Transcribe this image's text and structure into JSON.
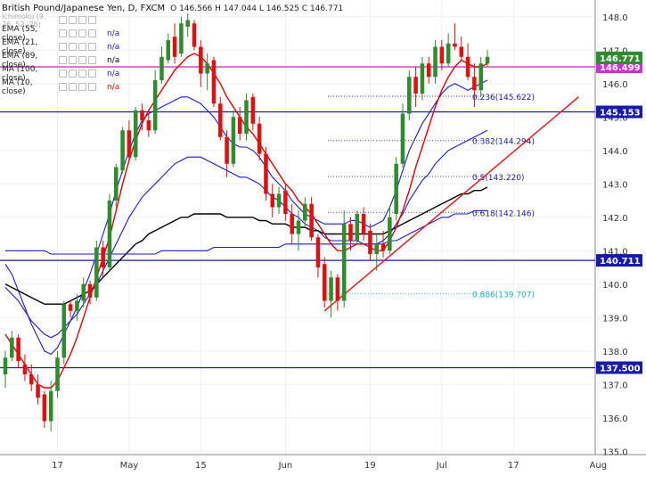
{
  "header": {
    "title": "British Pound/Japanese Yen, D, FXCM",
    "ohlc": "O 146.566  H 147.044  L 146.525  C 146.771",
    "indicators": [
      {
        "label": "Ichimoku (9, 26, 52, 26)",
        "value": "",
        "color": "#999999"
      },
      {
        "label": "EMA (55, close)",
        "value": "n/a",
        "color": "#1a1acc"
      },
      {
        "label": "EMA (21, close)",
        "value": "n/a",
        "color": "#1a1acc"
      },
      {
        "label": "EMA (89, close)",
        "value": "n/a",
        "color": "#000000"
      },
      {
        "label": "MA (100, close)",
        "value": "n/a",
        "color": "#1a1acc"
      },
      {
        "label": "MA (10, close)",
        "value": "n/a",
        "color": "#e00000"
      }
    ]
  },
  "chart_data": {
    "type": "candlestick",
    "symbol": "GBP/JPY",
    "timeframe": "D",
    "ylim": [
      134.9,
      148.5
    ],
    "y_ticks": [
      135.0,
      136.0,
      137.0,
      138.0,
      139.0,
      140.0,
      141.0,
      142.0,
      143.0,
      144.0,
      145.0,
      146.0,
      147.0,
      148.0
    ],
    "x_ticks": [
      "17",
      "May",
      "15",
      "Jun",
      "19",
      "Jul",
      "17",
      "Aug"
    ],
    "x_tick_index": [
      8,
      19,
      30,
      43,
      56,
      67,
      78,
      91
    ],
    "candles": [
      [
        137.3,
        138.0,
        136.9,
        137.8
      ],
      [
        137.8,
        138.6,
        137.7,
        138.4
      ],
      [
        138.4,
        138.5,
        137.5,
        137.7
      ],
      [
        137.6,
        137.9,
        137.1,
        137.3
      ],
      [
        137.3,
        137.6,
        136.8,
        137.0
      ],
      [
        137.0,
        137.3,
        136.4,
        136.6
      ],
      [
        136.7,
        136.8,
        135.7,
        135.9
      ],
      [
        135.9,
        137.1,
        135.6,
        136.8
      ],
      [
        136.8,
        138.0,
        136.6,
        137.8
      ],
      [
        137.8,
        139.5,
        137.6,
        139.4
      ],
      [
        139.4,
        139.5,
        139.0,
        139.2
      ],
      [
        139.2,
        139.7,
        138.9,
        139.5
      ],
      [
        139.5,
        140.2,
        139.3,
        140.0
      ],
      [
        140.0,
        140.1,
        139.4,
        139.6
      ],
      [
        139.6,
        141.3,
        139.5,
        141.1
      ],
      [
        141.1,
        141.3,
        140.2,
        140.5
      ],
      [
        140.5,
        142.7,
        140.4,
        142.5
      ],
      [
        142.5,
        143.6,
        142.3,
        143.5
      ],
      [
        143.4,
        144.7,
        143.3,
        144.6
      ],
      [
        144.6,
        144.9,
        143.7,
        143.8
      ],
      [
        143.8,
        145.3,
        143.7,
        145.2
      ],
      [
        145.2,
        145.4,
        144.6,
        144.9
      ],
      [
        144.9,
        145.1,
        144.4,
        144.6
      ],
      [
        144.6,
        146.4,
        144.5,
        146.1
      ],
      [
        146.1,
        147.1,
        146.0,
        146.8
      ],
      [
        146.7,
        147.5,
        146.6,
        147.3
      ],
      [
        147.4,
        147.8,
        146.6,
        146.8
      ],
      [
        146.9,
        148.0,
        146.8,
        147.8
      ],
      [
        147.7,
        148.1,
        147.4,
        147.9
      ],
      [
        147.8,
        147.9,
        147.0,
        147.1
      ],
      [
        147.1,
        147.3,
        145.9,
        146.3
      ],
      [
        146.3,
        146.9,
        145.8,
        146.6
      ],
      [
        146.7,
        146.8,
        145.3,
        145.4
      ],
      [
        145.4,
        145.6,
        144.3,
        144.4
      ],
      [
        144.4,
        144.6,
        143.2,
        143.6
      ],
      [
        143.6,
        145.2,
        143.5,
        145.0
      ],
      [
        145.0,
        145.3,
        144.3,
        144.5
      ],
      [
        144.5,
        145.7,
        144.3,
        145.5
      ],
      [
        145.6,
        145.7,
        144.6,
        144.8
      ],
      [
        144.8,
        145.0,
        143.7,
        143.9
      ],
      [
        143.9,
        144.1,
        142.5,
        142.7
      ],
      [
        142.7,
        143.0,
        142.0,
        142.3
      ],
      [
        142.3,
        142.9,
        142.1,
        142.7
      ],
      [
        142.8,
        143.0,
        141.9,
        142.1
      ],
      [
        142.1,
        142.4,
        141.2,
        141.5
      ],
      [
        141.5,
        142.2,
        141.0,
        141.9
      ],
      [
        141.9,
        142.6,
        141.7,
        142.4
      ],
      [
        142.4,
        142.6,
        141.3,
        141.4
      ],
      [
        141.4,
        141.5,
        140.2,
        140.5
      ],
      [
        140.6,
        140.8,
        139.3,
        139.5
      ],
      [
        139.5,
        140.4,
        139.0,
        140.2
      ],
      [
        140.2,
        140.3,
        139.2,
        139.5
      ],
      [
        139.5,
        142.2,
        139.3,
        141.8
      ],
      [
        141.8,
        142.0,
        141.0,
        141.3
      ],
      [
        141.3,
        142.2,
        141.2,
        142.1
      ],
      [
        142.1,
        142.3,
        141.3,
        141.5
      ],
      [
        141.6,
        141.8,
        140.7,
        140.9
      ],
      [
        140.9,
        141.5,
        140.4,
        141.2
      ],
      [
        141.2,
        141.6,
        140.8,
        141.0
      ],
      [
        141.0,
        142.3,
        140.9,
        142.0
      ],
      [
        142.1,
        143.8,
        141.9,
        143.6
      ],
      [
        143.6,
        145.4,
        143.5,
        145.1
      ],
      [
        145.1,
        146.4,
        144.9,
        146.2
      ],
      [
        146.2,
        146.5,
        145.3,
        145.7
      ],
      [
        145.7,
        146.8,
        145.5,
        146.6
      ],
      [
        146.6,
        146.8,
        146.0,
        146.2
      ],
      [
        146.2,
        147.3,
        146.0,
        147.1
      ],
      [
        147.1,
        147.3,
        146.4,
        146.6
      ],
      [
        146.6,
        147.5,
        146.5,
        147.2
      ],
      [
        147.2,
        147.8,
        147.0,
        147.1
      ],
      [
        147.1,
        147.4,
        146.7,
        146.8
      ],
      [
        146.8,
        147.2,
        146.1,
        146.2
      ],
      [
        146.2,
        146.6,
        145.3,
        145.8
      ],
      [
        145.8,
        146.8,
        145.6,
        146.6
      ],
      [
        146.6,
        147.0,
        146.5,
        146.8
      ]
    ],
    "horizontal_levels": [
      {
        "value": 146.499,
        "label": "146.499",
        "color": "#cc33cc"
      },
      {
        "value": 145.153,
        "label": "145.153",
        "color": "#1a1aaa"
      },
      {
        "value": 140.711,
        "label": "140.711",
        "color": "#1a1aaa"
      },
      {
        "value": 137.5,
        "label": "137.500",
        "color": "#1a1aaa"
      }
    ],
    "last_price": {
      "value": 146.771,
      "label": "146.771"
    },
    "fib_levels": [
      {
        "value": 145.622,
        "label": "0.236(145.622)",
        "color": "#1a1aaa"
      },
      {
        "value": 144.294,
        "label": "0.382(144.294)",
        "color": "#1a1aaa"
      },
      {
        "value": 143.22,
        "label": "0.5(143.220)",
        "color": "#1a1aaa"
      },
      {
        "value": 142.146,
        "label": "0.618(142.146)",
        "color": "#1a1aaa"
      },
      {
        "value": 139.707,
        "label": "0.886(139.707)",
        "color": "#22aacc"
      }
    ],
    "trendline": {
      "from": [
        49,
        139.2
      ],
      "to": [
        88,
        145.6
      ],
      "color": "#e02020"
    },
    "series": [
      {
        "name": "EMA (55, close)",
        "color": "#1a1acc",
        "values": [
          140.6,
          140.3,
          139.8,
          139.3,
          138.8,
          138.4,
          138.0,
          137.9,
          138.1,
          138.5,
          138.9,
          139.3,
          139.8,
          140.3,
          140.9,
          141.5,
          142.1,
          142.8,
          143.4,
          144.0,
          144.5,
          144.9,
          145.1,
          145.2,
          145.3,
          145.4,
          145.5,
          145.6,
          145.6,
          145.5,
          145.4,
          145.2,
          145.0,
          144.7,
          144.4,
          144.2,
          144.1,
          144.1,
          144.0,
          143.8,
          143.5,
          143.2,
          143.0,
          142.8,
          142.5,
          142.3,
          142.1,
          142.0,
          141.9,
          141.8,
          141.8,
          141.8,
          141.8,
          141.9,
          141.9,
          141.8,
          141.7,
          141.8,
          141.9,
          142.3,
          142.8,
          143.4,
          144.0,
          144.4,
          144.8,
          145.1,
          145.4,
          145.7,
          145.9,
          146.0,
          145.9,
          145.8,
          145.9,
          146.0,
          146.1
        ]
      },
      {
        "name": "EMA (21, close)",
        "color": "#1a1acc",
        "values": [
          139.9,
          139.7,
          139.5,
          139.2,
          138.9,
          138.7,
          138.5,
          138.4,
          138.5,
          138.7,
          138.9,
          139.1,
          139.4,
          139.7,
          140.0,
          140.4,
          140.8,
          141.2,
          141.6,
          142.0,
          142.3,
          142.6,
          142.8,
          143.0,
          143.2,
          143.4,
          143.6,
          143.7,
          143.8,
          143.8,
          143.8,
          143.7,
          143.6,
          143.5,
          143.4,
          143.3,
          143.2,
          143.2,
          143.1,
          143.0,
          142.8,
          142.6,
          142.5,
          142.3,
          142.1,
          142.0,
          141.8,
          141.7,
          141.6,
          141.4,
          141.3,
          141.3,
          141.3,
          141.3,
          141.3,
          141.2,
          141.2,
          141.2,
          141.3,
          141.5,
          141.8,
          142.1,
          142.5,
          142.8,
          143.1,
          143.3,
          143.6,
          143.8,
          144.0,
          144.1,
          144.2,
          144.3,
          144.4,
          144.5,
          144.6
        ]
      },
      {
        "name": "EMA (89, close)",
        "color": "#000000",
        "values": [
          140.0,
          139.9,
          139.8,
          139.7,
          139.6,
          139.5,
          139.4,
          139.4,
          139.4,
          139.4,
          139.5,
          139.6,
          139.7,
          139.8,
          140.0,
          140.2,
          140.4,
          140.6,
          140.8,
          141.0,
          141.2,
          141.3,
          141.5,
          141.6,
          141.7,
          141.8,
          141.9,
          142.0,
          142.0,
          142.1,
          142.1,
          142.1,
          142.1,
          142.1,
          142.0,
          142.0,
          142.0,
          142.0,
          142.0,
          141.9,
          141.9,
          141.8,
          141.8,
          141.8,
          141.7,
          141.7,
          141.7,
          141.6,
          141.6,
          141.5,
          141.5,
          141.5,
          141.5,
          141.5,
          141.5,
          141.5,
          141.5,
          141.5,
          141.5,
          141.6,
          141.7,
          141.8,
          141.9,
          142.0,
          142.1,
          142.2,
          142.3,
          142.4,
          142.5,
          142.6,
          142.7,
          142.7,
          142.8,
          142.8,
          142.9
        ]
      },
      {
        "name": "MA (100, close)",
        "color": "#1a1acc",
        "values": [
          141.0,
          141.0,
          141.0,
          141.0,
          141.0,
          141.0,
          141.0,
          140.9,
          140.9,
          140.9,
          140.9,
          140.9,
          140.9,
          140.9,
          140.9,
          140.9,
          140.9,
          140.9,
          140.9,
          140.9,
          140.9,
          140.9,
          140.9,
          140.9,
          141.0,
          141.0,
          141.0,
          141.0,
          141.0,
          141.0,
          141.0,
          141.0,
          141.1,
          141.1,
          141.1,
          141.1,
          141.1,
          141.1,
          141.1,
          141.1,
          141.1,
          141.1,
          141.1,
          141.2,
          141.2,
          141.2,
          141.2,
          141.2,
          141.2,
          141.2,
          141.2,
          141.2,
          141.2,
          141.2,
          141.2,
          141.2,
          141.2,
          141.2,
          141.2,
          141.3,
          141.3,
          141.4,
          141.5,
          141.6,
          141.7,
          141.8,
          141.9,
          142.0,
          142.0,
          142.1,
          142.1,
          142.1,
          142.2,
          142.2,
          142.2
        ]
      },
      {
        "name": "MA (10, close)",
        "color": "#e00000",
        "values": [
          138.5,
          138.2,
          137.9,
          137.6,
          137.3,
          137.0,
          136.9,
          136.9,
          137.1,
          137.5,
          137.9,
          138.4,
          139.0,
          139.6,
          140.2,
          140.8,
          141.4,
          142.2,
          143.0,
          143.7,
          144.3,
          144.8,
          145.2,
          145.5,
          145.8,
          146.1,
          146.4,
          146.6,
          146.8,
          146.9,
          146.8,
          146.6,
          146.3,
          146.0,
          145.6,
          145.3,
          145.0,
          144.7,
          144.5,
          144.2,
          143.9,
          143.6,
          143.3,
          143.0,
          142.8,
          142.5,
          142.3,
          142.1,
          141.8,
          141.5,
          141.2,
          141.0,
          141.0,
          141.1,
          141.2,
          141.2,
          141.1,
          141.0,
          141.0,
          141.3,
          141.7,
          142.2,
          142.8,
          143.5,
          144.1,
          144.7,
          145.3,
          145.8,
          146.2,
          146.5,
          146.7,
          146.6,
          146.5,
          146.5,
          146.6
        ]
      }
    ]
  }
}
